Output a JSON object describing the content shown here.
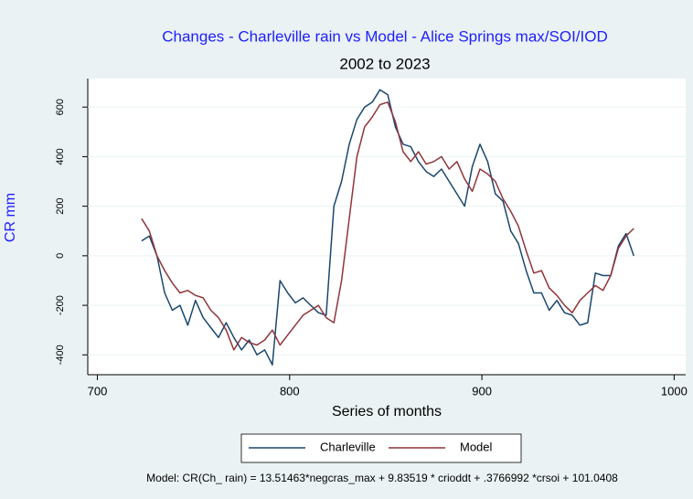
{
  "chart_data": {
    "type": "line",
    "title": "Changes - Charleville rain vs Model - Alice Springs max/SOI/IOD",
    "subtitle": "2002 to 2023",
    "x_label": "Series of months",
    "y_label": "CR mm",
    "note": "Model: CR(Ch_ rain) = 13.51463*negcras_max + 9.83519 * crioddt + .3766992 *crsoi + 101.0408",
    "xlim": [
      695,
      1006
    ],
    "xticks": [
      700,
      800,
      900,
      1000
    ],
    "ylim": [
      -480,
      715
    ],
    "yticks": [
      -400,
      -200,
      0,
      200,
      400,
      600
    ],
    "grid": true,
    "x": [
      723,
      727,
      731,
      735,
      739,
      743,
      747,
      751,
      755,
      759,
      763,
      767,
      771,
      775,
      779,
      783,
      787,
      791,
      795,
      799,
      803,
      807,
      811,
      815,
      819,
      823,
      827,
      831,
      835,
      839,
      843,
      847,
      851,
      855,
      859,
      863,
      867,
      871,
      875,
      879,
      883,
      887,
      891,
      895,
      899,
      903,
      907,
      911,
      915,
      919,
      923,
      927,
      931,
      935,
      939,
      943,
      947,
      951,
      955,
      959,
      963,
      967,
      971,
      975,
      979
    ],
    "series": [
      {
        "name": "Charleville",
        "color": "#1a476f",
        "values": [
          60,
          80,
          0,
          -150,
          -220,
          -200,
          -280,
          -180,
          -250,
          -290,
          -330,
          -270,
          -330,
          -380,
          -340,
          -400,
          -380,
          -440,
          -100,
          -150,
          -190,
          -170,
          -200,
          -230,
          -240,
          200,
          300,
          450,
          550,
          600,
          620,
          670,
          650,
          520,
          450,
          440,
          380,
          340,
          320,
          350,
          300,
          250,
          200,
          360,
          450,
          380,
          250,
          220,
          100,
          50,
          -60,
          -150,
          -150,
          -220,
          -180,
          -230,
          -240,
          -280,
          -270,
          -70,
          -80,
          -80,
          40,
          90,
          0
        ]
      },
      {
        "name": "Model",
        "color": "#90353b",
        "values": [
          150,
          100,
          0,
          -60,
          -110,
          -150,
          -140,
          -160,
          -170,
          -220,
          -250,
          -300,
          -380,
          -330,
          -350,
          -360,
          -340,
          -300,
          -360,
          -320,
          -280,
          -240,
          -220,
          -200,
          -250,
          -270,
          -100,
          150,
          400,
          520,
          560,
          610,
          620,
          540,
          420,
          380,
          420,
          370,
          380,
          400,
          350,
          380,
          310,
          260,
          350,
          330,
          300,
          230,
          180,
          120,
          20,
          -70,
          -60,
          -130,
          -160,
          -200,
          -230,
          -180,
          -150,
          -120,
          -140,
          -80,
          30,
          80,
          110
        ]
      }
    ]
  }
}
